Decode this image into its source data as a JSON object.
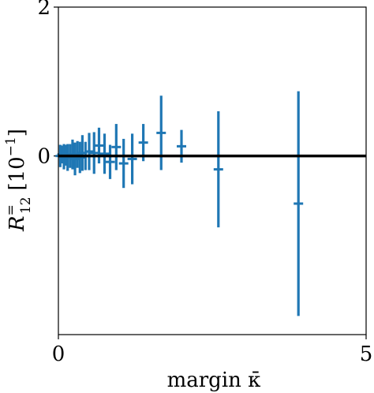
{
  "chart_data": {
    "type": "scatter",
    "title": "",
    "xlabel": "margin κ̄",
    "ylabel": "R=12 [10−1]",
    "ylabel_parts": {
      "symbol": "R",
      "superscript": "=",
      "subscript": "12",
      "unit_base": "[10",
      "unit_exp": "−1",
      "unit_close": "]"
    },
    "xlim": [
      0,
      5
    ],
    "ylim": [
      -2.4,
      2
    ],
    "x_ticks": [
      0,
      5
    ],
    "x_tick_labels": [
      "0",
      "5"
    ],
    "y_ticks": [
      0,
      2
    ],
    "y_tick_labels": [
      "0",
      "2"
    ],
    "grid": false,
    "reference_line_y": 0,
    "series": [
      {
        "color": "#1f77b4",
        "points": [
          {
            "x": 0.03,
            "y": 0.0,
            "err": 0.15
          },
          {
            "x": 0.06,
            "y": 0.02,
            "err": 0.12
          },
          {
            "x": 0.09,
            "y": -0.01,
            "err": 0.17
          },
          {
            "x": 0.12,
            "y": 0.01,
            "err": 0.14
          },
          {
            "x": 0.15,
            "y": -0.02,
            "err": 0.18
          },
          {
            "x": 0.19,
            "y": 0.0,
            "err": 0.16
          },
          {
            "x": 0.23,
            "y": 0.02,
            "err": 0.2
          },
          {
            "x": 0.27,
            "y": -0.04,
            "err": 0.22
          },
          {
            "x": 0.31,
            "y": 0.02,
            "err": 0.18
          },
          {
            "x": 0.35,
            "y": -0.02,
            "err": 0.21
          },
          {
            "x": 0.39,
            "y": 0.04,
            "err": 0.24
          },
          {
            "x": 0.44,
            "y": 0.0,
            "err": 0.19
          },
          {
            "x": 0.5,
            "y": 0.06,
            "err": 0.25
          },
          {
            "x": 0.58,
            "y": 0.04,
            "err": 0.28
          },
          {
            "x": 0.66,
            "y": 0.14,
            "err": 0.24
          },
          {
            "x": 0.75,
            "y": 0.03,
            "err": 0.27
          },
          {
            "x": 0.84,
            "y": -0.08,
            "err": 0.23
          },
          {
            "x": 0.94,
            "y": 0.12,
            "err": 0.31
          },
          {
            "x": 1.06,
            "y": -0.1,
            "err": 0.33
          },
          {
            "x": 1.2,
            "y": -0.04,
            "err": 0.34
          },
          {
            "x": 1.38,
            "y": 0.18,
            "err": 0.25
          },
          {
            "x": 1.67,
            "y": 0.31,
            "err": 0.5
          },
          {
            "x": 2.0,
            "y": 0.13,
            "err": 0.22
          },
          {
            "x": 2.6,
            "y": -0.18,
            "err": 0.78
          },
          {
            "x": 3.9,
            "y": -0.64,
            "err": 1.51
          }
        ]
      }
    ]
  }
}
